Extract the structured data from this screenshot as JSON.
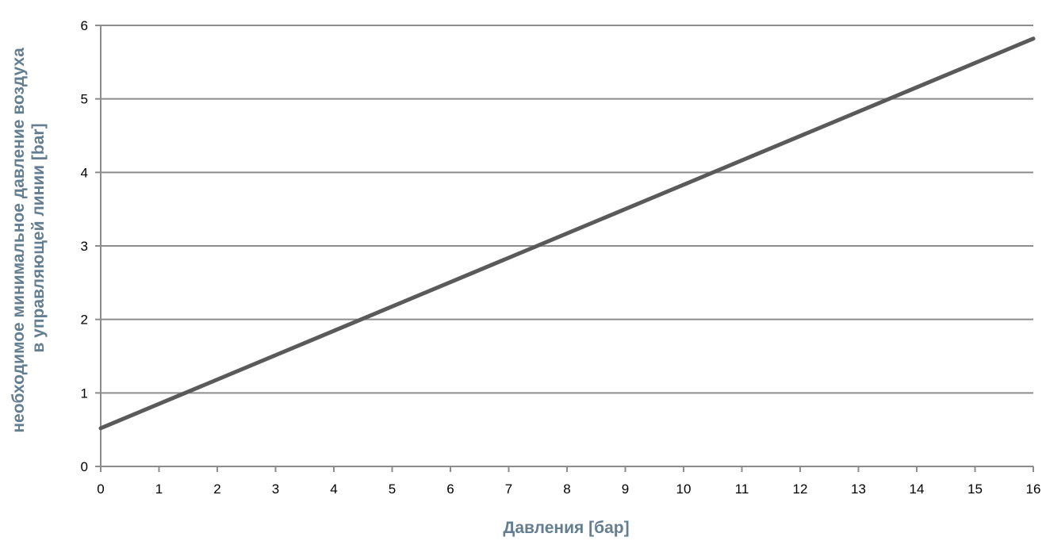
{
  "chart_data": {
    "type": "line",
    "title": "",
    "xlabel": "Давления [бар]",
    "ylabel_line1": "необходимое минимальное давление воздуха",
    "ylabel_line2": "в управляющей линии [bar]",
    "xlim": [
      0,
      16
    ],
    "ylim": [
      0,
      6
    ],
    "x_ticks": [
      "0",
      "1",
      "2",
      "3",
      "4",
      "5",
      "6",
      "7",
      "8",
      "9",
      "10",
      "11",
      "12",
      "13",
      "14",
      "15",
      "16"
    ],
    "y_ticks": [
      "0",
      "1",
      "2",
      "3",
      "4",
      "5",
      "6"
    ],
    "grid": "horizontal",
    "legend": "none",
    "series": [
      {
        "x": [
          0,
          16
        ],
        "y": [
          0.52,
          5.82
        ]
      }
    ],
    "colors": {
      "line": "#5a5a5a",
      "grid": "#8c8c8c",
      "axis": "#8c8c8c",
      "axis_title": "#647e91"
    }
  }
}
